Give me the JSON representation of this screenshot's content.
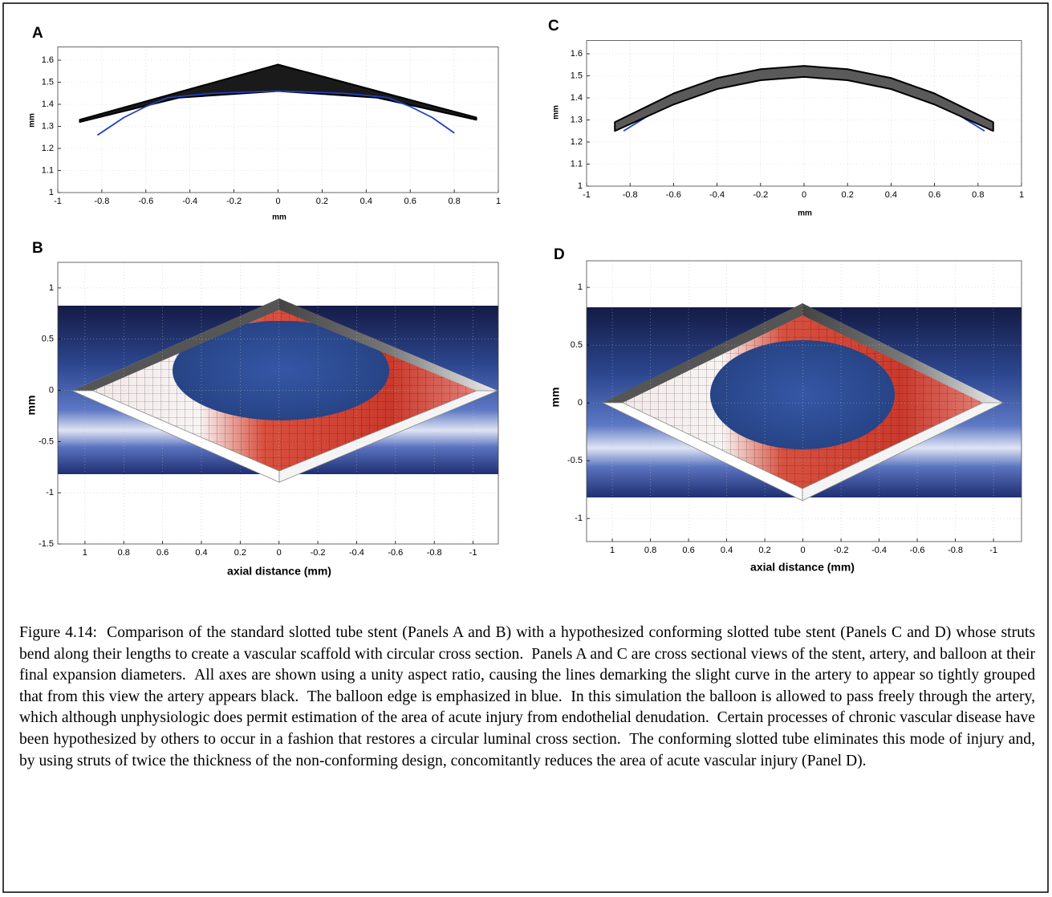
{
  "panels": [
    {
      "label": "A",
      "type": "line",
      "xlabel": "mm",
      "ylabel": "mm",
      "grid": true,
      "xlim": [
        -1,
        1
      ],
      "ylim": [
        1,
        1.66
      ],
      "xticks": [
        -1,
        -0.8,
        -0.6,
        -0.4,
        -0.2,
        0,
        0.2,
        0.4,
        0.6,
        0.8,
        1
      ],
      "yticks": [
        1,
        1.1,
        1.2,
        1.3,
        1.4,
        1.5,
        1.6
      ],
      "series": [
        {
          "color": "#000000",
          "fill": "#1a1a1a",
          "x": [
            -0.9,
            0,
            0.9,
            0.9,
            0.45,
            0,
            -0.45,
            -0.9
          ],
          "y": [
            1.33,
            1.58,
            1.34,
            1.33,
            1.43,
            1.46,
            1.43,
            1.32
          ]
        },
        {
          "color": "#1f3fbf",
          "x": [
            -0.82,
            -0.7,
            -0.6,
            -0.5,
            -0.3,
            0,
            0.3,
            0.5,
            0.6,
            0.7,
            0.8
          ],
          "y": [
            1.26,
            1.34,
            1.39,
            1.43,
            1.45,
            1.46,
            1.45,
            1.43,
            1.39,
            1.34,
            1.27
          ]
        }
      ]
    },
    {
      "label": "B",
      "type": "image",
      "xlabel": "axial distance (mm)",
      "ylabel": "mm",
      "grid": true,
      "xlim": [
        1.14,
        -1.13
      ],
      "ylim": [
        -1.5,
        1.25
      ],
      "xticks": [
        1,
        0.8,
        0.6,
        0.4,
        0.2,
        0,
        -0.2,
        -0.4,
        -0.6,
        -0.8,
        -1
      ],
      "yticks": [
        1,
        0.5,
        0,
        -0.5,
        -1,
        -1.5
      ]
    },
    {
      "label": "C",
      "type": "line",
      "xlabel": "mm",
      "ylabel": "mm",
      "grid": true,
      "xlim": [
        -1,
        1
      ],
      "ylim": [
        1,
        1.66
      ],
      "xticks": [
        -1,
        -0.8,
        -0.6,
        -0.4,
        -0.2,
        0,
        0.2,
        0.4,
        0.6,
        0.8,
        1
      ],
      "yticks": [
        1,
        1.1,
        1.2,
        1.3,
        1.4,
        1.5,
        1.6
      ],
      "series": [
        {
          "color": "#1f3fbf",
          "x": [
            -0.83,
            -0.6,
            -0.4,
            -0.2,
            0,
            0.2,
            0.4,
            0.6,
            0.83
          ],
          "y": [
            1.25,
            1.39,
            1.46,
            1.49,
            1.5,
            1.49,
            1.46,
            1.39,
            1.25
          ]
        },
        {
          "color": "#000000",
          "fill": "#5a5a5a",
          "x": [
            -0.87,
            -0.6,
            -0.4,
            -0.2,
            0,
            0.2,
            0.4,
            0.6,
            0.87,
            0.87,
            0.6,
            0.4,
            0.2,
            0,
            -0.2,
            -0.4,
            -0.6,
            -0.87
          ],
          "y": [
            1.29,
            1.42,
            1.49,
            1.53,
            1.545,
            1.53,
            1.49,
            1.42,
            1.29,
            1.25,
            1.37,
            1.44,
            1.48,
            1.495,
            1.48,
            1.44,
            1.37,
            1.25
          ]
        }
      ]
    },
    {
      "label": "D",
      "type": "image",
      "xlabel": "axial distance (mm)",
      "ylabel": "mm",
      "grid": true,
      "xlim": [
        1.135,
        -1.147
      ],
      "ylim": [
        -1.2,
        1.23
      ],
      "xticks": [
        1,
        0.8,
        0.6,
        0.4,
        0.2,
        0,
        -0.2,
        -0.4,
        -0.6,
        -0.8,
        -1
      ],
      "yticks": [
        1,
        0.5,
        0,
        -0.5,
        -1
      ]
    }
  ],
  "caption": "Figure 4.14:  Comparison of the standard slotted tube stent (Panels A and B) with a hypothesized conforming slotted tube stent (Panels C and D) whose struts bend along their lengths to create a vascular scaffold with circular cross section.  Panels A and C are cross sectional views of the stent, artery, and balloon at their final expansion diameters.  All axes are shown using a unity aspect ratio, causing the lines demarking the slight curve in the artery to appear so tightly grouped that from this view the artery appears black.  The balloon edge is emphasized in blue.  In this simulation the balloon is allowed to pass freely through the artery, which although unphysiologic does permit estimation of the area of acute injury from endothelial denudation.  Certain processes of chronic vascular disease have been hypothesized by others to occur in a fashion that restores a circular luminal cross section.  The conforming slotted tube eliminates this mode of injury and, by using struts of twice the thickness of the non-conforming design, concomitantly reduces the area of acute vascular injury (Panel D)."
}
